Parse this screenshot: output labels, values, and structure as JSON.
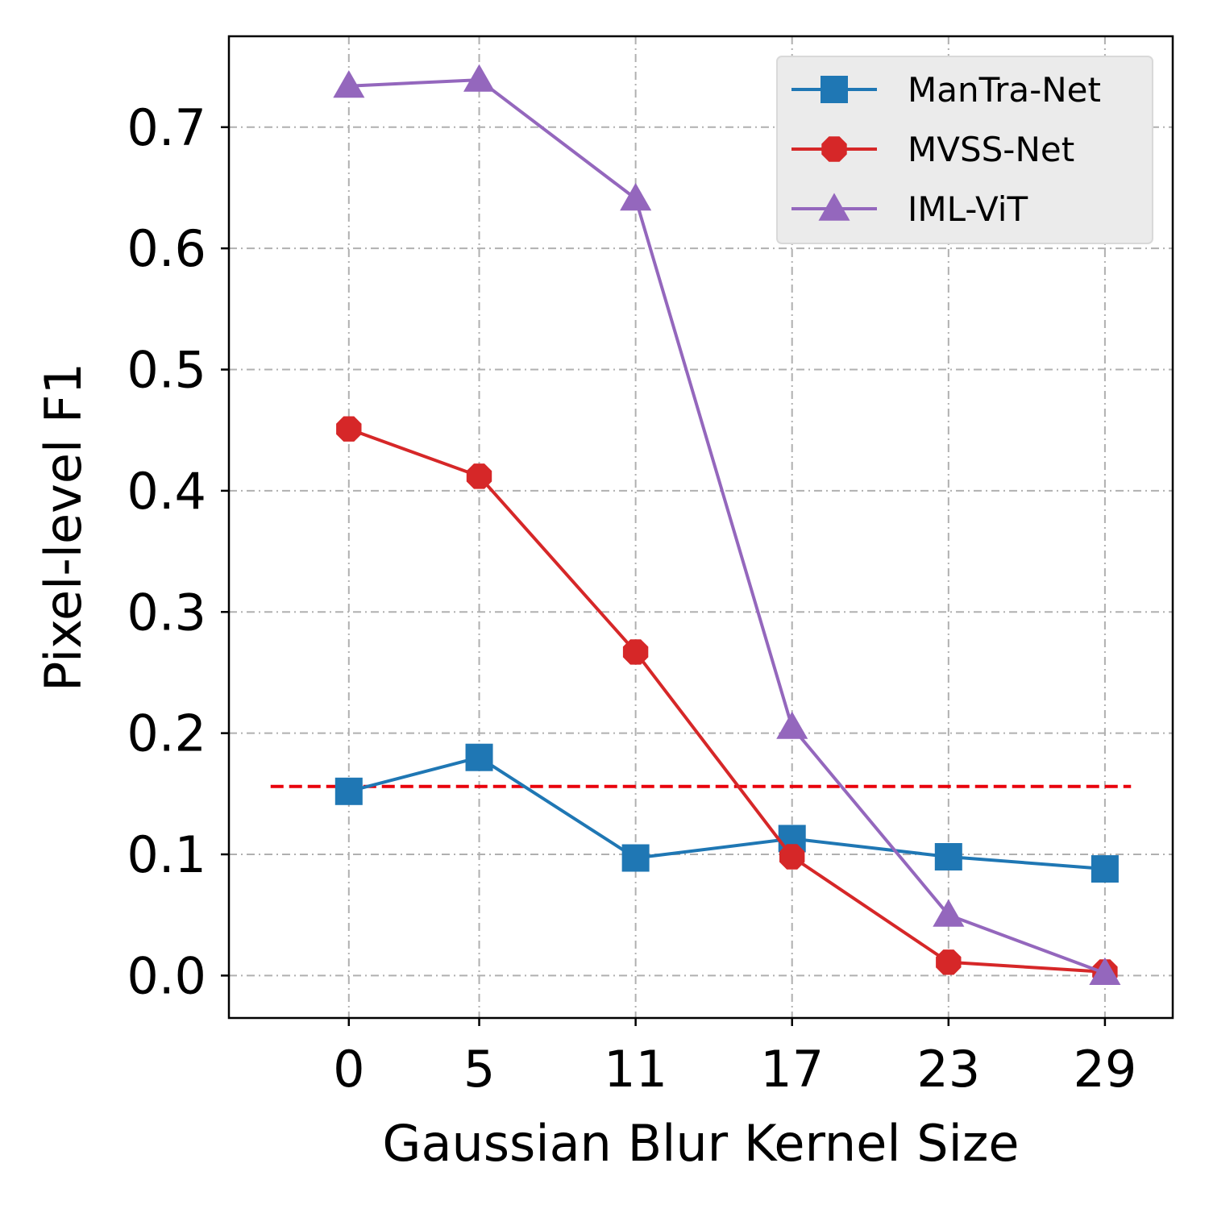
{
  "chart_data": {
    "type": "line",
    "xlabel": "Gaussian Blur Kernel Size",
    "ylabel": "Pixel-level F1",
    "x": [
      0,
      5,
      11,
      17,
      23,
      29
    ],
    "xlim": [
      -4.6,
      31.6
    ],
    "ylim": [
      -0.035,
      0.775
    ],
    "yticks": [
      0.0,
      0.1,
      0.2,
      0.3,
      0.4,
      0.5,
      0.6,
      0.7
    ],
    "ytick_labels": [
      "0.0",
      "0.1",
      "0.2",
      "0.3",
      "0.4",
      "0.5",
      "0.6",
      "0.7"
    ],
    "xtick_labels": [
      "0",
      "5",
      "11",
      "17",
      "23",
      "29"
    ],
    "grid": true,
    "legend_position": "top-right",
    "series": [
      {
        "name": "ManTra-Net",
        "color": "#1f77b4",
        "marker": "square",
        "values": [
          0.152,
          0.18,
          0.097,
          0.113,
          0.098,
          0.088
        ]
      },
      {
        "name": "MVSS-Net",
        "color": "#d62728",
        "marker": "octagon",
        "values": [
          0.451,
          0.412,
          0.267,
          0.098,
          0.011,
          0.003
        ]
      },
      {
        "name": "IML-ViT",
        "color": "#9467bd",
        "marker": "triangle",
        "values": [
          0.734,
          0.739,
          0.641,
          0.205,
          0.05,
          0.002
        ]
      }
    ],
    "reference_line": {
      "value": 0.156,
      "color": "#e8000b",
      "style": "dashed",
      "x_range": [
        -3,
        30
      ]
    }
  }
}
